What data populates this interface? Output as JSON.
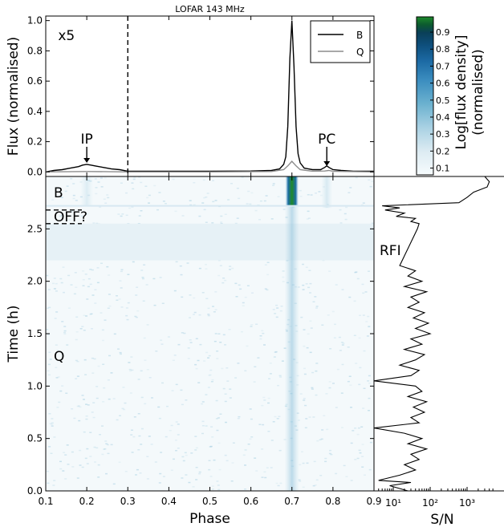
{
  "chart_data": [
    {
      "panel": "profile",
      "type": "line",
      "title": "LOFAR 143 MHz",
      "xlabel": "",
      "ylabel": "Flux (normalised)",
      "xlim": [
        0.1,
        0.9
      ],
      "ylim": [
        -0.03,
        1.03
      ],
      "yticks": [
        "0.0",
        "0.2",
        "0.4",
        "0.6",
        "0.8",
        "1.0"
      ],
      "legend_position": "top-right",
      "series": [
        {
          "name": "B",
          "color": "#000000",
          "x": [
            0.1,
            0.12,
            0.14,
            0.16,
            0.18,
            0.19,
            0.2,
            0.21,
            0.22,
            0.24,
            0.26,
            0.28,
            0.3,
            0.35,
            0.4,
            0.5,
            0.6,
            0.65,
            0.67,
            0.68,
            0.685,
            0.69,
            0.695,
            0.7,
            0.705,
            0.71,
            0.715,
            0.72,
            0.73,
            0.75,
            0.77,
            0.78,
            0.785,
            0.79,
            0.8,
            0.82,
            0.85,
            0.9
          ],
          "y": [
            0.0,
            0.01,
            0.015,
            0.025,
            0.035,
            0.045,
            0.05,
            0.045,
            0.04,
            0.03,
            0.02,
            0.015,
            0.005,
            0.005,
            0.005,
            0.005,
            0.006,
            0.01,
            0.02,
            0.05,
            0.1,
            0.3,
            0.75,
            1.0,
            0.7,
            0.3,
            0.12,
            0.06,
            0.025,
            0.015,
            0.015,
            0.03,
            0.04,
            0.03,
            0.015,
            0.01,
            0.005,
            0.005
          ]
        },
        {
          "name": "Q",
          "color": "#8c8c8c",
          "x": [
            0.1,
            0.2,
            0.3,
            0.5,
            0.65,
            0.68,
            0.69,
            0.7,
            0.71,
            0.72,
            0.75,
            0.78,
            0.79,
            0.8,
            0.9
          ],
          "y": [
            0.0,
            0.003,
            0.0,
            0.0,
            0.003,
            0.015,
            0.04,
            0.07,
            0.04,
            0.015,
            0.005,
            0.006,
            0.01,
            0.004,
            0.0
          ]
        }
      ],
      "annotations": [
        {
          "text": "x5",
          "x": 0.13,
          "y": 0.93
        },
        {
          "text": "IP",
          "x": 0.2,
          "y": 0.05
        },
        {
          "text": "PC",
          "x": 0.785,
          "y": 0.04
        }
      ],
      "vline": {
        "x": 0.3,
        "style": "dashed"
      }
    },
    {
      "panel": "waterfall",
      "type": "heatmap",
      "xlabel": "Phase",
      "ylabel": "Time (h)",
      "xlim": [
        0.1,
        0.9
      ],
      "ylim": [
        0.0,
        3.0
      ],
      "xticks": [
        "0.1",
        "0.2",
        "0.3",
        "0.4",
        "0.5",
        "0.6",
        "0.7",
        "0.8",
        "0.9"
      ],
      "yticks": [
        "0.0",
        "0.5",
        "1.0",
        "1.5",
        "2.0",
        "2.5"
      ],
      "pulse_phase": 0.7,
      "states": [
        {
          "label": "B",
          "from": 2.72,
          "to": 3.0
        },
        {
          "label": "OFF?",
          "from": 2.55,
          "to": 2.72
        },
        {
          "label": "Q",
          "from": 0.0,
          "to": 2.2
        }
      ],
      "rfi_band_hours": [
        2.2,
        2.55
      ]
    },
    {
      "panel": "sn",
      "type": "line",
      "xlabel": "S/N",
      "xscale": "log",
      "xlim": [
        3,
        10000
      ],
      "xticks": [
        "10¹",
        "10²",
        "10³"
      ],
      "annotations": [
        {
          "text": "RFI",
          "y": 2.3
        }
      ],
      "time_hours": [
        3.0,
        2.95,
        2.9,
        2.85,
        2.8,
        2.75,
        2.72,
        2.7,
        2.68,
        2.65,
        2.62,
        2.6,
        2.57,
        2.55,
        2.5,
        2.15,
        2.1,
        2.05,
        2.0,
        1.95,
        1.9,
        1.85,
        1.8,
        1.75,
        1.7,
        1.65,
        1.6,
        1.55,
        1.5,
        1.45,
        1.4,
        1.35,
        1.3,
        1.25,
        1.2,
        1.15,
        1.1,
        1.05,
        1.0,
        0.95,
        0.9,
        0.85,
        0.8,
        0.75,
        0.7,
        0.65,
        0.6,
        0.55,
        0.5,
        0.45,
        0.4,
        0.35,
        0.3,
        0.25,
        0.2,
        0.15,
        0.1,
        0.08,
        0.05,
        0.0
      ],
      "sn": [
        3000,
        4000,
        3500,
        1500,
        1000,
        600,
        5,
        15,
        6,
        20,
        12,
        40,
        30,
        50,
        45,
        15,
        40,
        25,
        60,
        20,
        80,
        30,
        50,
        25,
        70,
        35,
        90,
        40,
        100,
        30,
        60,
        20,
        70,
        40,
        15,
        50,
        30,
        3,
        40,
        60,
        25,
        80,
        35,
        70,
        30,
        50,
        3,
        20,
        60,
        25,
        80,
        30,
        50,
        20,
        40,
        15,
        4,
        30,
        8,
        25
      ]
    },
    {
      "panel": "colorbar",
      "label": "Log[flux density] (normalised)",
      "ticks": [
        "0.1",
        "0.2",
        "0.3",
        "0.4",
        "0.5",
        "0.6",
        "0.7",
        "0.8",
        "0.9"
      ],
      "colors": [
        "#f6fbfd",
        "#dcebf2",
        "#a9d1e3",
        "#6bb1cf",
        "#3b8dbf",
        "#1c6aa4",
        "#0e4f7d",
        "#0a3f58",
        "#0c5a2f",
        "#1d8a2a"
      ]
    }
  ]
}
